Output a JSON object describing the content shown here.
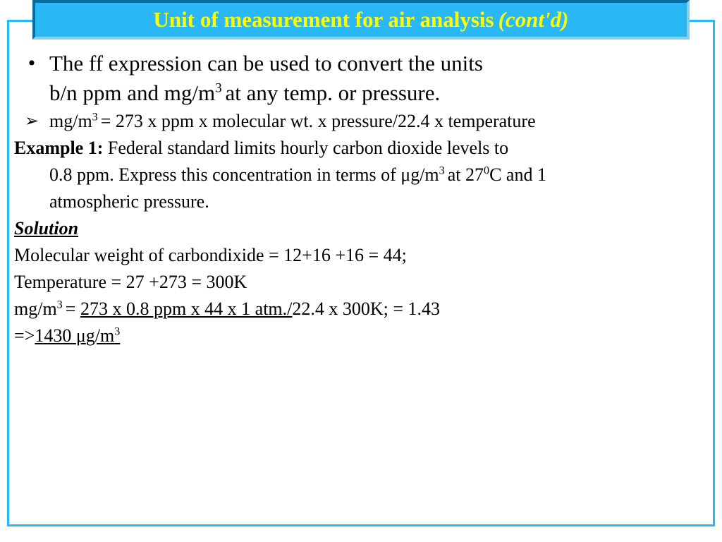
{
  "colors": {
    "frame_border": "#29b8f5",
    "title_bg": "#29b8f5",
    "title_border_dark": "#0a6b9e",
    "title_border_light": "#7dd3f7",
    "title_text": "#ffff00",
    "body_text": "#000000",
    "background": "#ffffff"
  },
  "typography": {
    "family": "Times New Roman",
    "title_size_pt": 24,
    "large_size_pt": 24,
    "med_size_pt": 20
  },
  "title": {
    "main": "Unit of measurement for air analysis",
    "contd": "(cont'd)"
  },
  "body": {
    "bullet1_a": "The ff expression can be used to convert the units",
    "bullet1_b": "b/n ppm and mg/m",
    "bullet1_b_sup": "3 ",
    "bullet1_c": "at any temp. or pressure.",
    "formula_a": "mg/m",
    "formula_sup": "3 ",
    "formula_b": "= 273 x ppm x molecular wt. x pressure/22.4 x temperature",
    "example_label": "Example 1: ",
    "example_a": "Federal standard limits hourly carbon dioxide levels to",
    "example_b1": "0.8 ppm. Express this concentration in terms of ",
    "example_b2": "g/m",
    "example_b_sup": "3 ",
    "example_b3": "at 27",
    "example_b3_sup": "0",
    "example_b4": "C and 1",
    "example_c": "atmospheric pressure.",
    "solution_label": "Solution",
    "sol1": "Molecular weight of carbondixide = 12+16 +16 = 44;",
    "sol2": " Temperature = 27 +273 = 300K",
    "sol3_a": "mg/m",
    "sol3_sup": "3 ",
    "sol3_b": "= ",
    "sol3_u": "273 x 0.8 ppm x 44 x 1 atm./",
    "sol3_c": "22.4 x 300K;   = 1.43",
    "sol4_a": "=>",
    "sol4_u1": "1430 ",
    "sol4_u2": "g/m",
    "sol4_sup": "3"
  }
}
